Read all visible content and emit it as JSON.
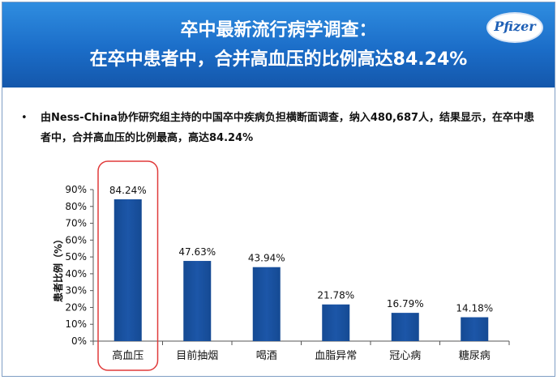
{
  "header": {
    "title_line1": "卒中最新流行病学调查：",
    "title_line2": "在卒中患者中，合并高血压的比例高达84.24%",
    "logo_text": "Pfizer"
  },
  "bullet": {
    "dot": "•",
    "text": "由Ness-China协作研究组主持的中国卒中疾病负担横断面调查，纳入480,687人，结果显示，在卒中患者中，合并高血压的比例最高，高达84.24%"
  },
  "colors": {
    "bar": "#1c56a8",
    "highlight": "#e03a3a",
    "header": "#1b6dc8"
  },
  "chart_data": {
    "type": "bar",
    "categories": [
      "高血压",
      "目前抽烟",
      "喝酒",
      "血脂异常",
      "冠心病",
      "糖尿病"
    ],
    "values": [
      84.24,
      47.63,
      43.94,
      21.78,
      16.79,
      14.18
    ],
    "value_labels": [
      "84.24%",
      "47.63%",
      "43.94%",
      "21.78%",
      "16.79%",
      "14.18%"
    ],
    "ylabel": "患者比例（%）",
    "ylim": [
      0,
      90
    ],
    "yticks": [
      0,
      10,
      20,
      30,
      40,
      50,
      60,
      70,
      80,
      90
    ],
    "ytick_labels": [
      "0%",
      "10%",
      "20%",
      "30%",
      "40%",
      "50%",
      "60%",
      "70%",
      "80%",
      "90%"
    ],
    "highlight_category": "高血压",
    "grid": false,
    "legend": "none"
  }
}
